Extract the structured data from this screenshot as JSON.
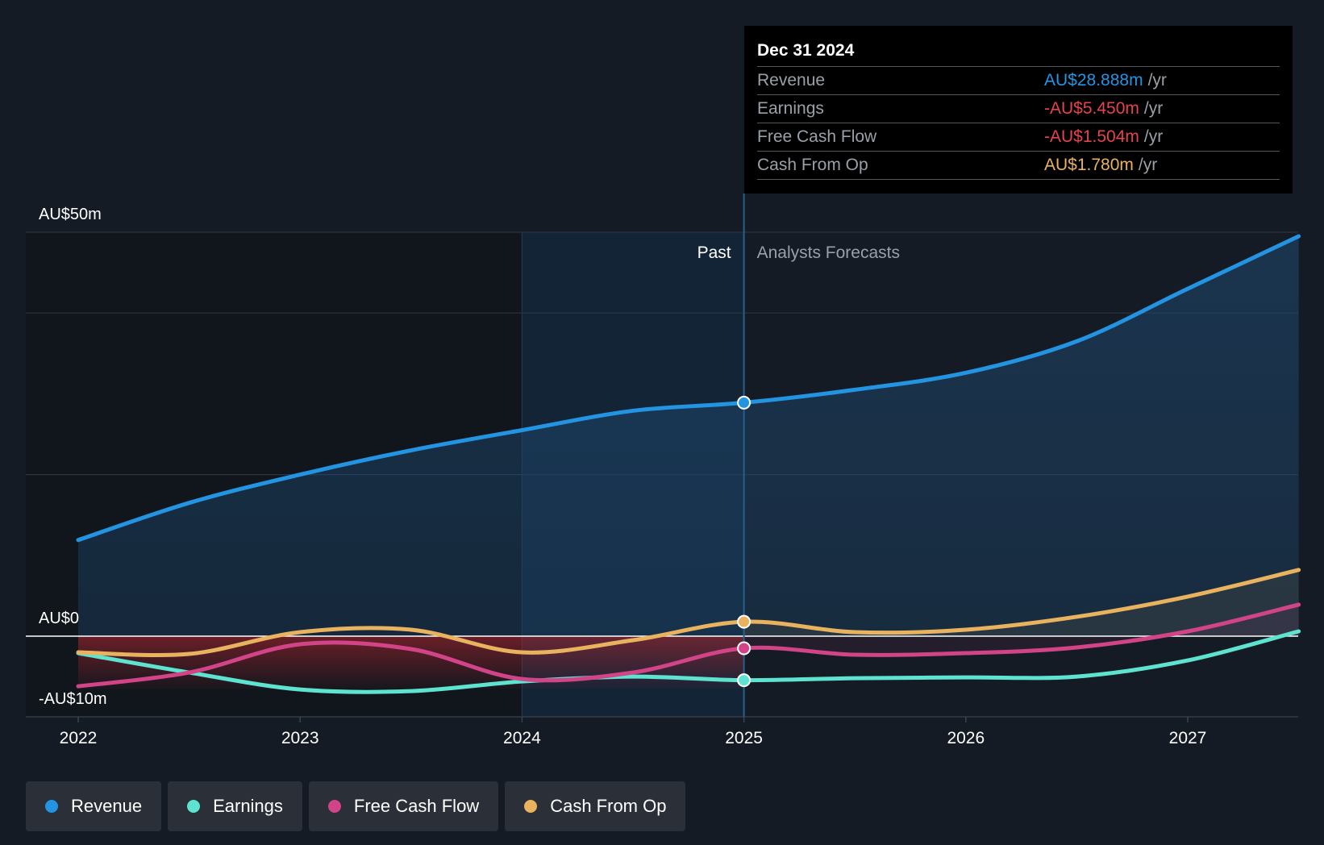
{
  "chart_data": {
    "type": "line",
    "title": "",
    "x_ticks": [
      "2022",
      "2023",
      "2024",
      "2025",
      "2026",
      "2027"
    ],
    "y_labels": {
      "top": "AU$50m",
      "zero": "AU$0",
      "bottom": "-AU$10m"
    },
    "ylim": [
      -10,
      50
    ],
    "xlim": [
      2021.77,
      2027.5
    ],
    "past_label": "Past",
    "forecast_label": "Analysts Forecasts",
    "divider_x": 2025.0,
    "shade_start_x": 2024.0,
    "series": [
      {
        "name": "Revenue",
        "color": "#2394e2",
        "points": [
          [
            2022.0,
            11.9
          ],
          [
            2022.5,
            16.5
          ],
          [
            2023.0,
            20.0
          ],
          [
            2023.5,
            23.0
          ],
          [
            2024.0,
            25.5
          ],
          [
            2024.5,
            27.9
          ],
          [
            2025.0,
            28.9
          ],
          [
            2025.5,
            30.5
          ],
          [
            2026.0,
            32.6
          ],
          [
            2026.5,
            36.5
          ],
          [
            2027.0,
            43.0
          ],
          [
            2027.5,
            49.5
          ]
        ]
      },
      {
        "name": "Earnings",
        "color": "#5ee3d0",
        "points": [
          [
            2022.0,
            -2.1
          ],
          [
            2022.5,
            -4.5
          ],
          [
            2023.0,
            -6.6
          ],
          [
            2023.5,
            -6.8
          ],
          [
            2024.0,
            -5.6
          ],
          [
            2024.5,
            -5.0
          ],
          [
            2025.0,
            -5.45
          ],
          [
            2025.5,
            -5.2
          ],
          [
            2026.0,
            -5.1
          ],
          [
            2026.5,
            -5.0
          ],
          [
            2027.0,
            -3.0
          ],
          [
            2027.5,
            0.6
          ]
        ]
      },
      {
        "name": "Free Cash Flow",
        "color": "#d14488",
        "points": [
          [
            2022.0,
            -6.2
          ],
          [
            2022.5,
            -4.5
          ],
          [
            2023.0,
            -1.0
          ],
          [
            2023.5,
            -1.6
          ],
          [
            2024.0,
            -5.3
          ],
          [
            2024.5,
            -4.5
          ],
          [
            2025.0,
            -1.5
          ],
          [
            2025.5,
            -2.3
          ],
          [
            2026.0,
            -2.1
          ],
          [
            2026.5,
            -1.4
          ],
          [
            2027.0,
            0.6
          ],
          [
            2027.5,
            3.9
          ]
        ]
      },
      {
        "name": "Cash From Op",
        "color": "#e8b25f",
        "points": [
          [
            2022.0,
            -2.0
          ],
          [
            2022.5,
            -2.2
          ],
          [
            2023.0,
            0.5
          ],
          [
            2023.5,
            0.8
          ],
          [
            2024.0,
            -2.0
          ],
          [
            2024.5,
            -0.5
          ],
          [
            2025.0,
            1.78
          ],
          [
            2025.5,
            0.5
          ],
          [
            2026.0,
            0.8
          ],
          [
            2026.5,
            2.4
          ],
          [
            2027.0,
            4.9
          ],
          [
            2027.5,
            8.2
          ]
        ]
      }
    ]
  },
  "tooltip": {
    "date": "Dec 31 2024",
    "unit": "/yr",
    "rows": [
      {
        "label": "Revenue",
        "value": "AU$28.888m",
        "color": "#2394e2"
      },
      {
        "label": "Earnings",
        "value": "-AU$5.450m",
        "color": "#e5434d"
      },
      {
        "label": "Free Cash Flow",
        "value": "-AU$1.504m",
        "color": "#e5434d"
      },
      {
        "label": "Cash From Op",
        "value": "AU$1.780m",
        "color": "#e8b25f"
      }
    ]
  },
  "legend": [
    {
      "label": "Revenue",
      "color": "#2394e2"
    },
    {
      "label": "Earnings",
      "color": "#5ee3d0"
    },
    {
      "label": "Free Cash Flow",
      "color": "#d14488"
    },
    {
      "label": "Cash From Op",
      "color": "#e8b25f"
    }
  ]
}
